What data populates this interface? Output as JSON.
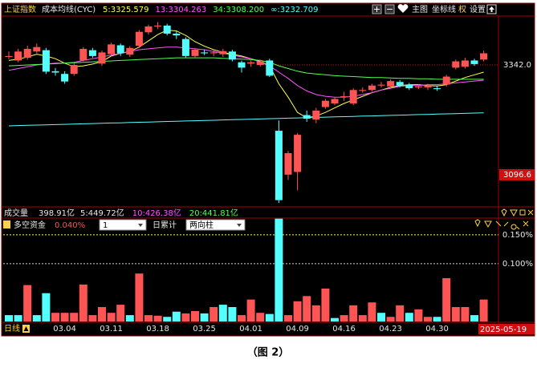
{
  "toolbar": [
    "主图",
    "坐标线",
    "权",
    "设置"
  ],
  "volume_header": {
    "label": "成交量",
    "value": "398.91亿",
    "ma": [
      {
        "text": "5:449.72亿",
        "color": "#e8e8e8"
      },
      {
        "text": "10:426.38亿",
        "color": "#ff54ff"
      },
      {
        "text": "20:441.81亿",
        "color": "#54ff54"
      }
    ]
  },
  "controls": {
    "period": "1",
    "mode": "日累计",
    "style": "两向柱"
  },
  "footer": {
    "period_label": "日线",
    "cursor_date": "2025-05-19"
  },
  "caption": "（图 2）",
  "chart_data": [
    {
      "type": "candlestick",
      "title": "上证指数",
      "subtitle": "成本均线(CYC)",
      "up_color": "#ff5454",
      "down_color": "#54ffff",
      "open": [
        3360,
        3352,
        3358,
        3372,
        3375,
        3328,
        3322,
        3322,
        3352,
        3375,
        3345,
        3366,
        3386,
        3365,
        3385,
        3415,
        3428,
        3430,
        3412,
        3400,
        3362,
        3370,
        3368,
        3366,
        3372,
        3348,
        3345,
        3342,
        3352,
        3195,
        3097,
        3103,
        3230,
        3220,
        3248,
        3256,
        3270,
        3256,
        3284,
        3286,
        3296,
        3294,
        3304,
        3298,
        3292,
        3292,
        3290,
        3298,
        3336,
        3338,
        3352,
        3354
      ],
      "high": [
        3372,
        3378,
        3385,
        3390,
        3380,
        3335,
        3328,
        3346,
        3382,
        3380,
        3374,
        3392,
        3390,
        3384,
        3420,
        3432,
        3438,
        3434,
        3418,
        3404,
        3380,
        3376,
        3376,
        3378,
        3376,
        3352,
        3352,
        3354,
        3356,
        3218,
        3150,
        3190,
        3240,
        3246,
        3266,
        3270,
        3282,
        3290,
        3292,
        3300,
        3304,
        3310,
        3308,
        3302,
        3298,
        3300,
        3296,
        3320,
        3354,
        3358,
        3356,
        3374
      ],
      "low": [
        3355,
        3348,
        3354,
        3368,
        3322,
        3318,
        3300,
        3318,
        3350,
        3358,
        3340,
        3362,
        3362,
        3360,
        3380,
        3410,
        3422,
        3408,
        3400,
        3358,
        3358,
        3364,
        3362,
        3360,
        3350,
        3325,
        3338,
        3338,
        3315,
        3034,
        3085,
        3062,
        3215,
        3212,
        3244,
        3252,
        3262,
        3252,
        3280,
        3282,
        3292,
        3290,
        3292,
        3286,
        3288,
        3286,
        3284,
        3294,
        3332,
        3334,
        3340,
        3350
      ],
      "close": [
        3362,
        3372,
        3378,
        3382,
        3327,
        3325,
        3305,
        3342,
        3378,
        3362,
        3370,
        3388,
        3368,
        3380,
        3416,
        3428,
        3430,
        3412,
        3408,
        3362,
        3376,
        3368,
        3370,
        3373,
        3354,
        3336,
        3348,
        3350,
        3318,
        3040,
        3145,
        3186,
        3222,
        3240,
        3262,
        3266,
        3272,
        3286,
        3286,
        3296,
        3298,
        3306,
        3296,
        3290,
        3294,
        3296,
        3288,
        3316,
        3350,
        3352,
        3344,
        3368
      ],
      "series": [
        {
          "name": "5:3325.579",
          "color": "#ffff54",
          "values": [
            3352,
            3355,
            3360,
            3366,
            3362,
            3356,
            3346,
            3338,
            3340,
            3344,
            3350,
            3362,
            3368,
            3372,
            3382,
            3396,
            3410,
            3420,
            3418,
            3408,
            3394,
            3384,
            3376,
            3370,
            3366,
            3362,
            3356,
            3350,
            3340,
            3300,
            3270,
            3236,
            3224,
            3228,
            3236,
            3246,
            3256,
            3264,
            3272,
            3280,
            3286,
            3292,
            3296,
            3298,
            3298,
            3296,
            3295,
            3298,
            3306,
            3314,
            3320,
            3326
          ]
        },
        {
          "name": "13:3304.263",
          "color": "#ff54ff",
          "values": [
            3330,
            3334,
            3338,
            3342,
            3344,
            3346,
            3346,
            3348,
            3352,
            3356,
            3360,
            3364,
            3368,
            3372,
            3376,
            3378,
            3380,
            3382,
            3382,
            3380,
            3378,
            3376,
            3372,
            3368,
            3364,
            3360,
            3356,
            3348,
            3340,
            3326,
            3312,
            3296,
            3284,
            3276,
            3272,
            3270,
            3270,
            3272,
            3276,
            3280,
            3286,
            3290,
            3294,
            3296,
            3296,
            3298,
            3298,
            3300,
            3302,
            3304,
            3306,
            3308
          ]
        },
        {
          "name": "34:3308.200",
          "color": "#54ff54",
          "values": [
            3340,
            3341,
            3342,
            3343,
            3344,
            3345,
            3346,
            3347,
            3348,
            3349,
            3350,
            3351,
            3352,
            3353,
            3354,
            3355,
            3356,
            3357,
            3358,
            3358,
            3358,
            3358,
            3358,
            3357,
            3356,
            3355,
            3354,
            3352,
            3348,
            3340,
            3334,
            3328,
            3324,
            3322,
            3320,
            3318,
            3317,
            3316,
            3315,
            3314,
            3314,
            3313,
            3312,
            3312,
            3311,
            3311,
            3310,
            3310,
            3310,
            3310,
            3310,
            3310
          ]
        },
        {
          "name": "∞:3232.709",
          "color": "#54ffff",
          "values": [
            3206,
            3206.6,
            3207.1,
            3207.7,
            3208.3,
            3208.8,
            3209.4,
            3210,
            3210.6,
            3211.1,
            3211.7,
            3212.3,
            3212.8,
            3213.4,
            3214,
            3214.5,
            3215.1,
            3215.7,
            3216.3,
            3216.8,
            3217.4,
            3218,
            3218.5,
            3219.1,
            3219.7,
            3220.2,
            3220.8,
            3221.4,
            3222,
            3222.5,
            3223.1,
            3223.7,
            3224.2,
            3224.8,
            3225.4,
            3225.9,
            3226.5,
            3227.1,
            3227.7,
            3228.2,
            3228.8,
            3229.4,
            3229.9,
            3230.5,
            3231.1,
            3231.6,
            3232.2,
            3232.8,
            3233.4,
            3233.9,
            3234.5,
            3235.1
          ]
        }
      ],
      "ylim": [
        3030.4,
        3451.3
      ],
      "yticks": [
        {
          "value": 3342,
          "label": "3342.0"
        },
        {
          "value": 3096.6,
          "label": "3096.6"
        }
      ],
      "boxed_ticks": [
        1
      ]
    },
    {
      "type": "bar",
      "title": "多空资金",
      "current_label": "0.040%",
      "up_color": "#ff5454",
      "down_color": "#54ffff",
      "categories": [
        null,
        null,
        null,
        null,
        null,
        null,
        "03.04",
        null,
        null,
        null,
        null,
        "03.11",
        null,
        null,
        null,
        null,
        "03.18",
        null,
        null,
        null,
        null,
        "03.25",
        null,
        null,
        null,
        null,
        "04.01",
        null,
        null,
        null,
        null,
        "04.09",
        null,
        null,
        null,
        null,
        "04.16",
        null,
        null,
        null,
        null,
        "04.23",
        null,
        null,
        null,
        null,
        "04.30",
        null,
        null,
        null,
        null,
        null
      ],
      "values": [
        0.011,
        0.011,
        0.063,
        0.011,
        0.049,
        0.015,
        0.015,
        0.015,
        0.064,
        0.011,
        0.025,
        0.015,
        0.029,
        0.011,
        0.083,
        0.011,
        0.01,
        0.008,
        0.017,
        0.014,
        0.018,
        0.014,
        0.025,
        0.029,
        0.025,
        0.011,
        0.038,
        0.015,
        0.013,
        0.178,
        0.011,
        0.035,
        0.044,
        0.028,
        0.057,
        0.006,
        0.011,
        0.028,
        0.011,
        0.033,
        0.015,
        0.008,
        0.028,
        0.015,
        0.021,
        0.008,
        0.008,
        0.075,
        0.025,
        0.025,
        0.011,
        0.038
      ],
      "up": [
        false,
        false,
        true,
        false,
        false,
        true,
        true,
        true,
        true,
        true,
        true,
        true,
        true,
        false,
        true,
        true,
        true,
        false,
        false,
        true,
        true,
        false,
        true,
        false,
        false,
        true,
        true,
        true,
        false,
        false,
        true,
        true,
        true,
        true,
        true,
        false,
        true,
        true,
        true,
        true,
        false,
        true,
        true,
        false,
        true,
        true,
        false,
        true,
        true,
        true,
        false,
        true
      ],
      "ylim": [
        0,
        0.179
      ],
      "yticks": [
        {
          "value": 0.15,
          "label": "0.150%"
        },
        {
          "value": 0.1,
          "label": "0.100%"
        }
      ],
      "grid_colors": [
        "#ffff54",
        "#d8d8d8"
      ]
    }
  ]
}
